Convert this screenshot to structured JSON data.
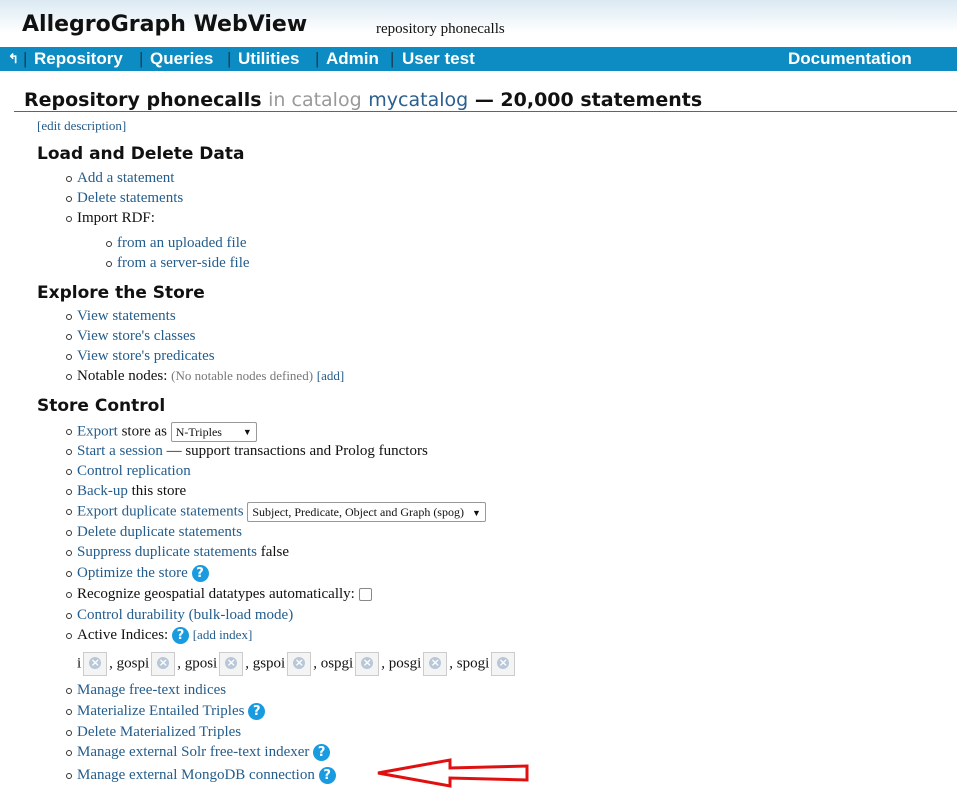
{
  "header": {
    "title": "AllegroGraph WebView",
    "subtitle": "repository phonecalls"
  },
  "nav": {
    "back_icon": "back-arrow-icon",
    "items": [
      "Repository",
      "Queries",
      "Utilities",
      "Admin",
      "User test"
    ],
    "documentation": "Documentation"
  },
  "page": {
    "repo": "Repository phonecalls",
    "in_catalog": "in catalog",
    "catalog": "mycatalog",
    "count": "— 20,000 statements",
    "edit": "[edit description]"
  },
  "load": {
    "title": "Load and Delete Data",
    "add": "Add a statement",
    "delete": "Delete statements",
    "import": "Import RDF:",
    "uploaded": "from an uploaded file",
    "server": "from a server-side file"
  },
  "explore": {
    "title": "Explore the Store",
    "statements": "View statements",
    "classes": "View store's classes",
    "predicates": "View store's predicates",
    "notable": "Notable nodes:",
    "notable_note": "(No notable nodes defined)",
    "add": "[add]"
  },
  "control": {
    "title": "Store Control",
    "export": "Export",
    "export_rest": "store as",
    "export_format": "N-Triples",
    "session": "Start a session",
    "session_rest": "— support transactions and Prolog functors",
    "replication": "Control replication",
    "backup": "Back-up",
    "backup_rest": "this store",
    "export_dup": "Export duplicate statements",
    "export_dup_option": "Subject, Predicate, Object and Graph (spog)",
    "delete_dup": "Delete duplicate statements",
    "suppress_dup": "Suppress duplicate statements",
    "suppress_value": "false",
    "optimize": "Optimize the store",
    "geospatial": "Recognize geospatial datatypes automatically:",
    "geospatial_checked": false,
    "durability": "Control durability (bulk-load mode)",
    "indices": "Active Indices:",
    "add_index": "[add index]",
    "index_list": [
      "i",
      "gospi",
      "gposi",
      "gspoi",
      "ospgi",
      "posgi",
      "spogi"
    ],
    "freetext": "Manage free-text indices",
    "materialize": "Materialize Entailed Triples",
    "delete_mat": "Delete Materialized Triples",
    "solr": "Manage external Solr free-text indexer",
    "mongo": "Manage external MongoDB connection"
  },
  "annotation": {
    "arrow_color": "#e01010"
  }
}
